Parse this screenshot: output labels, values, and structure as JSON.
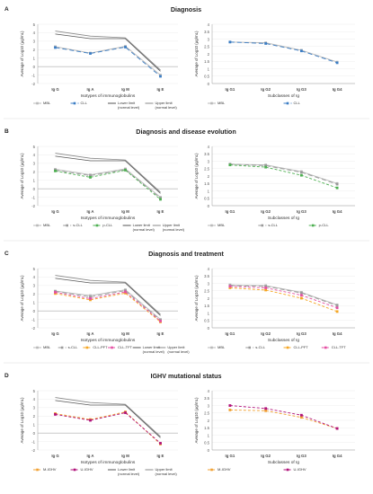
{
  "colors": {
    "mbl": "#b9b9b9",
    "cll": "#3b7dc4",
    "lower": "#555555",
    "upper": "#888888",
    "s_cll": "#9a9a9a",
    "p_cll": "#4caf50",
    "cll_pft": "#f5a623",
    "cll_tft": "#e44fa3",
    "m_ighv": "#f0a030",
    "u_ighv": "#b0127a"
  },
  "panels": [
    {
      "letter": "A",
      "title": "Diagnosis",
      "left": {
        "type": "line",
        "ylabel": "Average of Log10 (µg/mL)",
        "xlabel": "Isotypes of immunoglobulins",
        "categories": [
          "Ig G",
          "Ig A",
          "Ig M",
          "Ig E"
        ],
        "ylim": [
          -2,
          5
        ],
        "yticks": [
          "-2",
          "-1",
          "0",
          "1",
          "2",
          "3",
          "4",
          "5"
        ],
        "series": [
          {
            "name": "MBL",
            "color_key": "mbl",
            "dash": "",
            "marker": true,
            "values": [
              2.35,
              1.6,
              2.4,
              -1.0
            ]
          },
          {
            "name": "CLL",
            "color_key": "cll",
            "dash": "5 3",
            "marker": true,
            "values": [
              2.25,
              1.55,
              2.3,
              -1.15
            ]
          },
          {
            "name": "Lower limit (normal level)",
            "color_key": "lower",
            "dash": "",
            "marker": false,
            "values": [
              3.85,
              3.3,
              3.3,
              -0.55
            ]
          },
          {
            "name": "Upper limit (normal level)",
            "color_key": "upper",
            "dash": "",
            "marker": false,
            "values": [
              4.2,
              3.6,
              3.4,
              -0.4
            ]
          }
        ]
      },
      "right": {
        "type": "line",
        "ylabel": "Average of Log10 (µg/mL)",
        "xlabel": "Subclasses of Ig",
        "categories": [
          "Ig G1",
          "Ig G2",
          "Ig G3",
          "Ig G4"
        ],
        "ylim": [
          0,
          4
        ],
        "yticks": [
          "0",
          "0.5",
          "1",
          "1.5",
          "2",
          "2.5",
          "3",
          "3.5",
          "4"
        ],
        "series": [
          {
            "name": "MBL",
            "color_key": "mbl",
            "dash": "",
            "marker": true,
            "values": [
              2.8,
              2.75,
              2.25,
              1.45
            ]
          },
          {
            "name": "CLL",
            "color_key": "cll",
            "dash": "5 3",
            "marker": true,
            "values": [
              2.8,
              2.7,
              2.2,
              1.4
            ]
          }
        ]
      }
    },
    {
      "letter": "B",
      "title": "Diagnosis and disease evolution",
      "left": {
        "type": "line",
        "ylabel": "Average of Log10 (µg/mL)",
        "xlabel": "Isotypes of immunoglobulins",
        "categories": [
          "Ig G",
          "Ig A",
          "Ig M",
          "Ig E"
        ],
        "ylim": [
          -2,
          5
        ],
        "yticks": [
          "-2",
          "-1",
          "0",
          "1",
          "2",
          "3",
          "4",
          "5"
        ],
        "series": [
          {
            "name": "MBL",
            "color_key": "mbl",
            "dash": "",
            "marker": true,
            "values": [
              2.3,
              1.65,
              2.35,
              -1.0
            ]
          },
          {
            "name": "s-CLL",
            "color_key": "s_cll",
            "dash": "5 3",
            "marker": true,
            "values": [
              2.2,
              1.55,
              2.25,
              -1.1
            ]
          },
          {
            "name": "p-CLL",
            "color_key": "p_cll",
            "dash": "3 2",
            "marker": true,
            "values": [
              2.1,
              1.35,
              2.2,
              -1.25
            ]
          },
          {
            "name": "Lower limit (normal level)",
            "color_key": "lower",
            "dash": "",
            "marker": false,
            "values": [
              3.85,
              3.3,
              3.3,
              -0.55
            ]
          },
          {
            "name": "Upper limit (normal level)",
            "color_key": "upper",
            "dash": "",
            "marker": false,
            "values": [
              4.2,
              3.6,
              3.4,
              -0.4
            ]
          }
        ]
      },
      "right": {
        "type": "line",
        "ylabel": "Average of Log10 (µg/mL)",
        "xlabel": "Subclasses of Ig",
        "categories": [
          "Ig G1",
          "Ig G2",
          "Ig G3",
          "Ig G4"
        ],
        "ylim": [
          0,
          4
        ],
        "yticks": [
          "0",
          "0.5",
          "1",
          "1.5",
          "2",
          "2.5",
          "3",
          "3.5",
          "4"
        ],
        "series": [
          {
            "name": "MBL",
            "color_key": "mbl",
            "dash": "",
            "marker": true,
            "values": [
              2.8,
              2.75,
              2.3,
              1.5
            ]
          },
          {
            "name": "s-CLL",
            "color_key": "s_cll",
            "dash": "5 3",
            "marker": true,
            "values": [
              2.8,
              2.7,
              2.25,
              1.45
            ]
          },
          {
            "name": "p-CLL",
            "color_key": "p_cll",
            "dash": "3 2",
            "marker": true,
            "values": [
              2.75,
              2.6,
              2.05,
              1.2
            ]
          }
        ]
      }
    },
    {
      "letter": "C",
      "title": "Diagnosis and treatment",
      "left": {
        "type": "line",
        "ylabel": "Average of Log10 (µg/mL)",
        "xlabel": "Isotypes of immunoglobulins",
        "categories": [
          "Ig G",
          "Ig A",
          "Ig M",
          "Ig E"
        ],
        "ylim": [
          -2,
          5
        ],
        "yticks": [
          "-2",
          "-1",
          "0",
          "1",
          "2",
          "3",
          "4",
          "5"
        ],
        "series": [
          {
            "name": "MBL",
            "color_key": "mbl",
            "dash": "",
            "marker": true,
            "values": [
              2.35,
              1.8,
              2.5,
              -1.0
            ]
          },
          {
            "name": "s-CLL",
            "color_key": "s_cll",
            "dash": "5 3",
            "marker": true,
            "values": [
              2.3,
              1.65,
              2.4,
              -1.1
            ]
          },
          {
            "name": "CLL-PFT",
            "color_key": "cll_pft",
            "dash": "3 2",
            "marker": true,
            "values": [
              2.05,
              1.3,
              2.1,
              -1.3
            ]
          },
          {
            "name": "CLL-TFT",
            "color_key": "cll_tft",
            "dash": "3 2",
            "marker": true,
            "values": [
              2.2,
              1.45,
              2.25,
              -1.2
            ]
          },
          {
            "name": "Lower limit (normal level)",
            "color_key": "lower",
            "dash": "",
            "marker": false,
            "values": [
              3.85,
              3.3,
              3.3,
              -0.55
            ]
          },
          {
            "name": "Upper limit (normal level)",
            "color_key": "upper",
            "dash": "",
            "marker": false,
            "values": [
              4.2,
              3.6,
              3.4,
              -0.4
            ]
          }
        ]
      },
      "right": {
        "type": "line",
        "ylabel": "Average of Log10 (µg/mL)",
        "xlabel": "Subclasses of Ig",
        "categories": [
          "Ig G1",
          "Ig G2",
          "Ig G3",
          "Ig G4"
        ],
        "ylim": [
          0,
          4
        ],
        "yticks": [
          "0",
          "0.5",
          "1",
          "1.5",
          "2",
          "2.5",
          "3",
          "3.5",
          "4"
        ],
        "series": [
          {
            "name": "MBL",
            "color_key": "mbl",
            "dash": "",
            "marker": true,
            "values": [
              2.9,
              2.85,
              2.4,
              1.55
            ]
          },
          {
            "name": "s-CLL",
            "color_key": "s_cll",
            "dash": "5 3",
            "marker": true,
            "values": [
              2.85,
              2.8,
              2.35,
              1.5
            ]
          },
          {
            "name": "CLL-PFT",
            "color_key": "cll_pft",
            "dash": "3 2",
            "marker": true,
            "values": [
              2.7,
              2.55,
              2.0,
              1.1
            ]
          },
          {
            "name": "CLL-TFT",
            "color_key": "cll_tft",
            "dash": "3 2",
            "marker": true,
            "values": [
              2.8,
              2.7,
              2.2,
              1.35
            ]
          }
        ]
      }
    },
    {
      "letter": "D",
      "title": "IGHV mutational status",
      "left": {
        "type": "line",
        "ylabel": "Average of Log10 (µg/mL)",
        "xlabel": "Isotypes of immunoglobulins",
        "categories": [
          "Ig G",
          "Ig A",
          "Ig M",
          "Ig E"
        ],
        "ylim": [
          -2,
          5
        ],
        "yticks": [
          "-2",
          "-1",
          "0",
          "1",
          "2",
          "3",
          "4",
          "5"
        ],
        "series": [
          {
            "name": "M-IGHV",
            "color_key": "m_ighv",
            "dash": "3 2",
            "marker": true,
            "values": [
              2.3,
              1.6,
              2.5,
              -1.3
            ]
          },
          {
            "name": "U-IGHV",
            "color_key": "u_ighv",
            "dash": "3 2",
            "marker": true,
            "values": [
              2.2,
              1.5,
              2.4,
              -1.2
            ]
          },
          {
            "name": "Lower limit (normal level)",
            "color_key": "lower",
            "dash": "",
            "marker": false,
            "values": [
              3.85,
              3.3,
              3.3,
              -0.55
            ]
          },
          {
            "name": "Upper limit (normal level)",
            "color_key": "upper",
            "dash": "",
            "marker": false,
            "values": [
              4.2,
              3.6,
              3.4,
              -0.4
            ]
          }
        ]
      },
      "right": {
        "type": "line",
        "ylabel": "Average of Log10 (µg/mL)",
        "xlabel": "Subclasses of Ig",
        "categories": [
          "Ig G1",
          "Ig G2",
          "Ig G3",
          "Ig G4"
        ],
        "ylim": [
          0,
          4
        ],
        "yticks": [
          "0",
          "0.5",
          "1",
          "1.5",
          "2",
          "2.5",
          "3",
          "3.5",
          "4"
        ],
        "series": [
          {
            "name": "M-IGHV",
            "color_key": "m_ighv",
            "dash": "3 2",
            "marker": true,
            "values": [
              2.7,
              2.65,
              2.2,
              1.45
            ]
          },
          {
            "name": "U-IGHV",
            "color_key": "u_ighv",
            "dash": "3 2",
            "marker": true,
            "values": [
              3.0,
              2.8,
              2.35,
              1.45
            ]
          }
        ]
      }
    }
  ]
}
